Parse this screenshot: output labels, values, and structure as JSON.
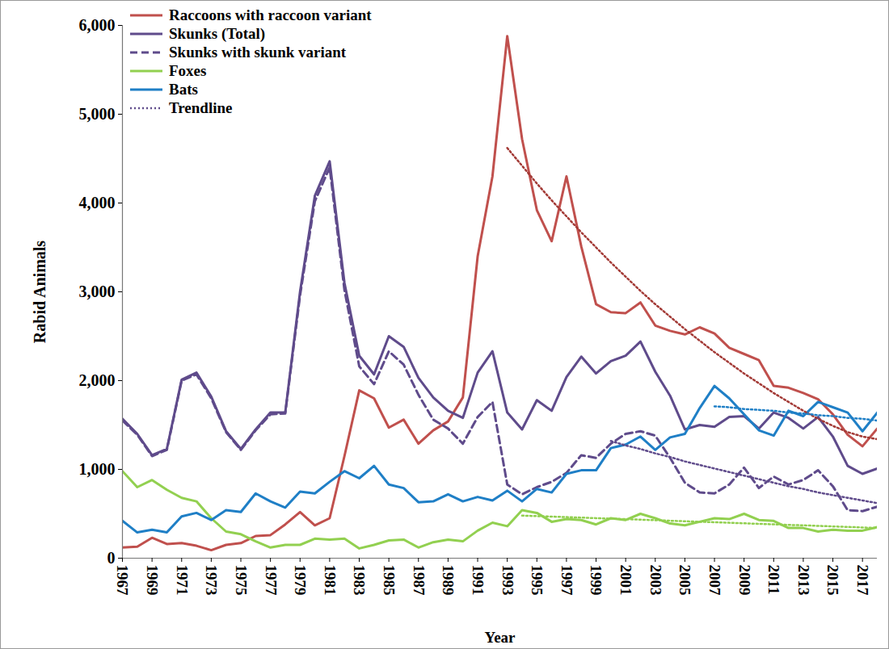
{
  "chart_data": {
    "type": "line",
    "x_label": "Year",
    "y_label": "Rabid Animals",
    "x": [
      1967,
      1968,
      1969,
      1970,
      1971,
      1972,
      1973,
      1974,
      1975,
      1976,
      1977,
      1978,
      1979,
      1980,
      1981,
      1982,
      1983,
      1984,
      1985,
      1986,
      1987,
      1988,
      1989,
      1990,
      1991,
      1992,
      1993,
      1994,
      1995,
      1996,
      1997,
      1998,
      1999,
      2000,
      2001,
      2002,
      2003,
      2004,
      2005,
      2006,
      2007,
      2008,
      2009,
      2010,
      2011,
      2012,
      2013,
      2014,
      2015,
      2016,
      2017,
      2018
    ],
    "xlim": [
      1967,
      2018
    ],
    "xticks": [
      1967,
      1969,
      1971,
      1973,
      1975,
      1977,
      1979,
      1981,
      1983,
      1985,
      1987,
      1989,
      1991,
      1993,
      1995,
      1997,
      1999,
      2001,
      2003,
      2005,
      2007,
      2009,
      2011,
      2013,
      2015,
      2017
    ],
    "ylim": [
      0,
      6000
    ],
    "yticks": [
      0,
      {
        "value": 1000,
        "label": "1,000"
      },
      {
        "value": 2000,
        "label": "2,000"
      },
      {
        "value": 3000,
        "label": "3,000"
      },
      {
        "value": 4000,
        "label": "4,000"
      },
      {
        "value": 5000,
        "label": "5,000"
      },
      {
        "value": 6000,
        "label": "6,000"
      }
    ],
    "grid": false,
    "legend": "top-left",
    "series": [
      {
        "name": "Raccoons with raccoon variant",
        "color": "#c0504d",
        "line_style": "solid",
        "values": [
          120,
          130,
          230,
          160,
          170,
          140,
          90,
          150,
          170,
          250,
          260,
          380,
          520,
          370,
          450,
          1150,
          1890,
          1800,
          1470,
          1560,
          1290,
          1440,
          1540,
          1810,
          3400,
          4300,
          5880,
          4720,
          3920,
          3570,
          4300,
          3510,
          2860,
          2770,
          2760,
          2880,
          2620,
          2560,
          2520,
          2600,
          2530,
          2370,
          2300,
          2230,
          1940,
          1920,
          1860,
          1790,
          1620,
          1390,
          1260,
          1460
        ]
      },
      {
        "name": "Skunks (Total)",
        "color": "#5f4b8b",
        "line_style": "solid",
        "values": [
          1570,
          1400,
          1160,
          1230,
          2010,
          2090,
          1820,
          1430,
          1230,
          1450,
          1640,
          1640,
          3000,
          4080,
          4470,
          3100,
          2280,
          2070,
          2500,
          2380,
          2030,
          1810,
          1660,
          1580,
          2090,
          2330,
          1640,
          1450,
          1780,
          1660,
          2040,
          2270,
          2080,
          2220,
          2280,
          2440,
          2100,
          1830,
          1450,
          1500,
          1480,
          1590,
          1600,
          1460,
          1640,
          1580,
          1460,
          1590,
          1370,
          1040,
          950,
          1010
        ]
      },
      {
        "name": "Skunks with skunk variant",
        "color": "#5f4b8b",
        "line_style": "dashed",
        "values": [
          1550,
          1390,
          1150,
          1220,
          2000,
          2070,
          1800,
          1420,
          1220,
          1440,
          1620,
          1630,
          2960,
          4020,
          4400,
          3020,
          2160,
          1960,
          2330,
          2180,
          1840,
          1560,
          1460,
          1290,
          1590,
          1760,
          830,
          720,
          800,
          860,
          960,
          1160,
          1130,
          1290,
          1400,
          1430,
          1380,
          1130,
          850,
          740,
          730,
          830,
          1020,
          790,
          920,
          830,
          880,
          990,
          810,
          540,
          530,
          580
        ]
      },
      {
        "name": "Foxes",
        "color": "#92d050",
        "line_style": "solid",
        "values": [
          980,
          800,
          880,
          770,
          680,
          640,
          450,
          300,
          270,
          190,
          120,
          150,
          150,
          220,
          210,
          220,
          110,
          150,
          200,
          210,
          120,
          180,
          210,
          190,
          310,
          400,
          360,
          540,
          510,
          410,
          440,
          430,
          380,
          450,
          430,
          500,
          450,
          390,
          370,
          410,
          450,
          440,
          500,
          430,
          420,
          340,
          340,
          300,
          320,
          310,
          310,
          350
        ]
      },
      {
        "name": "Bats",
        "color": "#1f7fc6",
        "line_style": "solid",
        "values": [
          420,
          290,
          320,
          290,
          470,
          510,
          430,
          540,
          520,
          730,
          640,
          570,
          750,
          730,
          860,
          980,
          900,
          1040,
          830,
          790,
          630,
          640,
          720,
          640,
          690,
          650,
          760,
          640,
          780,
          740,
          950,
          990,
          990,
          1240,
          1280,
          1370,
          1220,
          1360,
          1400,
          1690,
          1940,
          1800,
          1620,
          1440,
          1380,
          1660,
          1600,
          1760,
          1700,
          1640,
          1430,
          1640
        ]
      },
      {
        "name": "Trendline",
        "color": "#5f4b8b",
        "line_style": "dotted",
        "values": [
          null,
          null,
          null,
          null,
          null,
          null,
          null,
          null,
          null,
          null,
          null,
          null,
          null,
          null,
          null,
          null,
          null,
          null,
          null,
          null,
          null,
          null,
          null,
          null,
          null,
          null,
          null,
          null,
          null,
          null,
          null,
          null,
          null,
          1320,
          1270,
          1230,
          1180,
          1140,
          1090,
          1050,
          1010,
          970,
          930,
          890,
          850,
          810,
          780,
          740,
          710,
          680,
          650,
          620
        ]
      },
      {
        "name": "Trendline",
        "color": "#a33a36",
        "line_style": "dotted",
        "values": [
          null,
          null,
          null,
          null,
          null,
          null,
          null,
          null,
          null,
          null,
          null,
          null,
          null,
          null,
          null,
          null,
          null,
          null,
          null,
          null,
          null,
          null,
          null,
          null,
          null,
          null,
          4620,
          4420,
          4220,
          4030,
          3850,
          3670,
          3500,
          3330,
          3170,
          3010,
          2860,
          2720,
          2580,
          2450,
          2320,
          2200,
          2080,
          1970,
          1860,
          1760,
          1660,
          1570,
          1490,
          1420,
          1370,
          1340
        ]
      },
      {
        "name": "Trendline",
        "color": "#92d050",
        "line_style": "dotted",
        "values": [
          null,
          null,
          null,
          null,
          null,
          null,
          null,
          null,
          null,
          null,
          null,
          null,
          null,
          null,
          null,
          null,
          null,
          null,
          null,
          null,
          null,
          null,
          null,
          null,
          null,
          null,
          null,
          480,
          474,
          468,
          463,
          457,
          451,
          445,
          440,
          434,
          428,
          422,
          416,
          410,
          405,
          399,
          393,
          387,
          381,
          375,
          370,
          364,
          358,
          352,
          346,
          340
        ]
      },
      {
        "name": "Trendline",
        "color": "#1f7fc6",
        "line_style": "dotted",
        "values": [
          null,
          null,
          null,
          null,
          null,
          null,
          null,
          null,
          null,
          null,
          null,
          null,
          null,
          null,
          null,
          null,
          null,
          null,
          null,
          null,
          null,
          null,
          null,
          null,
          null,
          null,
          null,
          null,
          null,
          null,
          null,
          null,
          null,
          null,
          null,
          null,
          null,
          null,
          null,
          null,
          1710,
          1700,
          1680,
          1670,
          1660,
          1640,
          1630,
          1610,
          1600,
          1580,
          1570,
          1550
        ]
      }
    ]
  }
}
